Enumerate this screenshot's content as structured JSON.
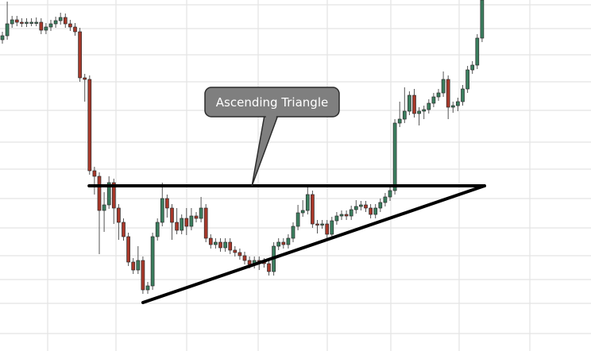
{
  "chart_data": {
    "type": "candlestick",
    "title": "",
    "xlabel": "",
    "ylabel": "",
    "ylim": [
      0,
      221
    ],
    "grid": true,
    "colors": {
      "up": "#3b7f5f",
      "down": "#a8382a",
      "outline": "#2b2b2b",
      "grid": "#e4e4e4",
      "trendline": "#000000",
      "callout_fill": "#7f7f7f",
      "callout_border": "#2b2b2b",
      "callout_text": "#ffffff"
    },
    "open": [
      196,
      198.5,
      206,
      208.5,
      207,
      206.5,
      207,
      207,
      207,
      202,
      204,
      206,
      208,
      210,
      206,
      204,
      201,
      172,
      171,
      113.5,
      110,
      88.5,
      92,
      106,
      90,
      81,
      72,
      56,
      51,
      57,
      38.5,
      41,
      72,
      81,
      96,
      90,
      81,
      76,
      83.5,
      78.5,
      85,
      83.5,
      90,
      71,
      67,
      68.5,
      65,
      68.5,
      63.5,
      62,
      60,
      57,
      54.5,
      57,
      56,
      55,
      50,
      66,
      68.5,
      67,
      71,
      78.5,
      87,
      88.5,
      98.5,
      80,
      79.5,
      80,
      73.5,
      82,
      85,
      86,
      85,
      89,
      91,
      92,
      90,
      86,
      90,
      93.5,
      97,
      101,
      143.5,
      146,
      151,
      161,
      149.5,
      151,
      152,
      156,
      160,
      162.5,
      171,
      153.5,
      154.5,
      157,
      165,
      177,
      180,
      197
    ],
    "high": [
      201,
      220,
      211,
      211,
      209.5,
      209.5,
      209.5,
      210,
      209.5,
      206.5,
      208.5,
      210.5,
      213,
      212.5,
      208.5,
      206.5,
      203.5,
      174.5,
      173.5,
      116,
      112.5,
      100,
      110,
      108.5,
      92.5,
      83.5,
      74.5,
      58.5,
      66,
      59.5,
      43.5,
      74.5,
      83.5,
      106,
      98.5,
      92.5,
      90,
      86,
      90,
      90,
      87.5,
      97,
      92.5,
      73.5,
      71,
      71,
      71,
      71,
      66,
      64.5,
      62.5,
      59.5,
      59.5,
      59.5,
      58.5,
      57.5,
      68.5,
      71,
      71,
      73.5,
      81,
      92,
      95,
      103,
      101,
      82.5,
      82.5,
      82.5,
      84.5,
      87.5,
      88.5,
      88.5,
      91.5,
      95,
      94.5,
      94.5,
      92.5,
      92.5,
      96,
      99.5,
      103.5,
      146,
      157,
      166,
      163.5,
      165,
      153.5,
      154.5,
      158.5,
      162.5,
      165,
      176,
      173.5,
      157,
      159.5,
      167.5,
      179.5,
      182.5,
      199.5,
      225
    ],
    "low": [
      193.5,
      196,
      203.5,
      204.5,
      204,
      204,
      204.5,
      204.5,
      199.5,
      199.5,
      201.5,
      203.5,
      205.5,
      203.5,
      201.5,
      198.5,
      169.5,
      157,
      111,
      98.5,
      61,
      75,
      89.5,
      80,
      70,
      69.5,
      53.5,
      48.5,
      48.5,
      36,
      36,
      38.5,
      69.5,
      78.5,
      84,
      70,
      73.5,
      73.5,
      73,
      76,
      81,
      81,
      68.5,
      64.5,
      64.5,
      62.5,
      62.5,
      61,
      59.5,
      57.5,
      54.5,
      52,
      52,
      51,
      52.5,
      47.5,
      47.5,
      63.5,
      64.5,
      64.5,
      68.5,
      76,
      84.5,
      86,
      77.5,
      74,
      77,
      71,
      71,
      79.5,
      82.5,
      82.5,
      82.5,
      86.5,
      88.5,
      87.5,
      83.5,
      83.5,
      87.5,
      91,
      94.5,
      98.5,
      141,
      143.5,
      148.5,
      147,
      142,
      146,
      149.5,
      153.5,
      157.5,
      160,
      146,
      150,
      151,
      154.5,
      162.5,
      174.5,
      177.5,
      194.5
    ],
    "close": [
      198.5,
      206,
      208.5,
      207,
      206.5,
      207,
      207,
      207,
      202,
      204,
      206,
      208,
      210,
      206,
      204,
      201,
      172,
      171,
      113.5,
      110,
      88.5,
      92,
      106,
      90,
      81,
      72,
      56,
      51,
      57,
      38.5,
      41,
      72,
      81,
      96,
      90,
      81,
      76,
      83.5,
      78.5,
      85,
      83.5,
      90,
      71,
      67,
      68.5,
      65,
      68.5,
      63.5,
      62,
      60,
      57,
      54.5,
      57,
      56,
      55,
      50,
      66,
      68.5,
      67,
      71,
      78.5,
      87,
      88.5,
      98.5,
      80,
      79.5,
      80,
      73.5,
      82,
      85,
      86,
      85,
      89,
      91,
      92,
      90,
      86,
      90,
      93.5,
      97,
      101,
      143.5,
      146,
      151,
      161,
      149.5,
      151,
      152,
      156,
      160,
      162.5,
      171,
      153.5,
      154.5,
      157,
      165,
      177,
      180,
      197,
      221
    ],
    "annotations": {
      "resistance_line": {
        "from": [
          17.9,
          104
        ],
        "to": [
          99.5,
          104
        ]
      },
      "support_line": {
        "from": [
          29,
          30.5
        ],
        "to": [
          99.5,
          104
        ]
      },
      "callout": {
        "text": "Ascending Triangle",
        "points_to": [
          51.5,
          104
        ]
      }
    }
  }
}
